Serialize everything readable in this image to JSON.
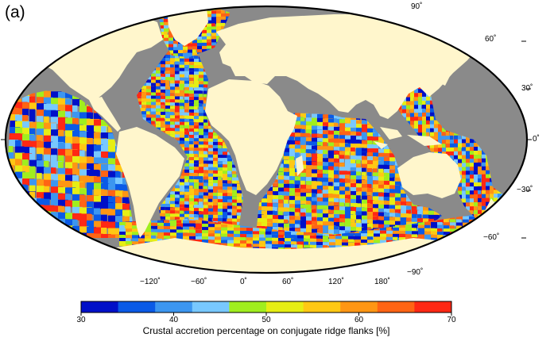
{
  "figure": {
    "panel_label": "(a)",
    "projection": "Robinson",
    "central_meridian": "30°",
    "colors": {
      "land": "#fff6cc",
      "no_data": "#8a8a8a",
      "frame": "#000000"
    },
    "lat_labels": [
      "90˚",
      "60˚",
      "30˚",
      "0˚",
      "−30˚",
      "−60˚",
      "−90˚"
    ],
    "lon_labels": [
      "−120˚",
      "−60˚",
      "0˚",
      "60˚",
      "120˚",
      "180˚"
    ]
  },
  "colorbar": {
    "title": "Crustal accretion percentage on conjugate ridge flanks [%]",
    "tick_labels": [
      "30",
      "40",
      "50",
      "60",
      "70"
    ],
    "min": 30,
    "max": 70,
    "colors": [
      "#0010c8",
      "#0a5ae6",
      "#3c96f0",
      "#78c8ff",
      "#a0ee1e",
      "#e6ee14",
      "#ffc814",
      "#ff9614",
      "#ff6414",
      "#ff2814"
    ]
  }
}
